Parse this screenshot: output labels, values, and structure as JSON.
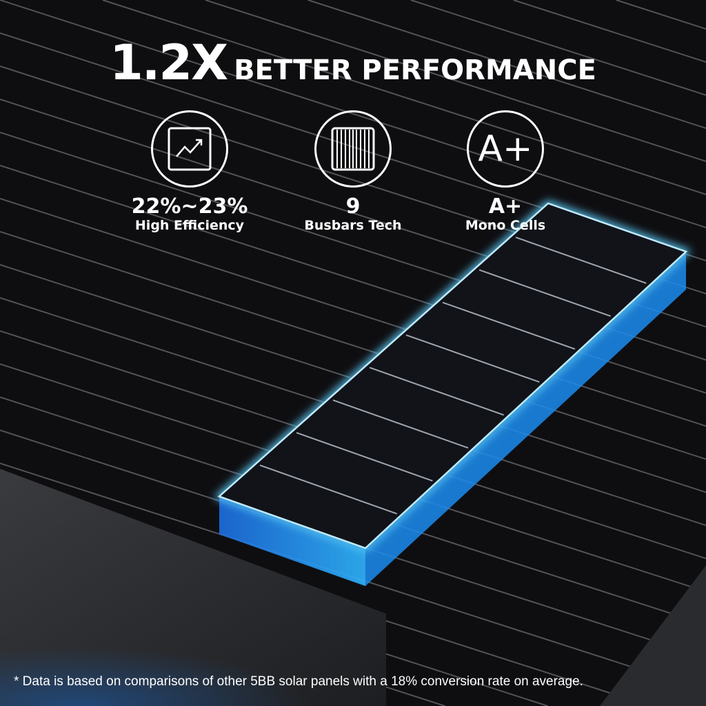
{
  "headline": {
    "multiplier": "1.2X",
    "text": "BETTER PERFORMANCE"
  },
  "features": [
    {
      "icon": "trend-chart-icon",
      "value": "22%~23%",
      "label": "High Efficiency"
    },
    {
      "icon": "busbar-cell-icon",
      "value": "9",
      "label": "Busbars Tech"
    },
    {
      "icon": "a-plus-icon",
      "icon_text": "A+",
      "value": "A+",
      "label": "Mono Cells"
    }
  ],
  "footnote": "* Data is based on comparisons of other 5BB solar panels with a 18% conversion rate on average.",
  "colors": {
    "glow": "#2fa8ff",
    "background": "#0e0e11",
    "text": "#ffffff"
  }
}
